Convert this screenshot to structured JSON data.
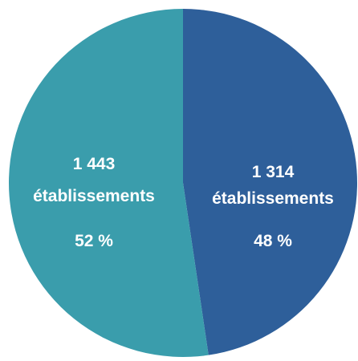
{
  "chart_data": {
    "type": "pie",
    "title": "",
    "legend": "none",
    "slices": [
      {
        "value": 1314,
        "percent": 48,
        "count_label": "1 314",
        "unit_label": "établissements",
        "percent_label": "48 %",
        "color": "#2E5F9A"
      },
      {
        "value": 1443,
        "percent": 52,
        "count_label": "1 443",
        "unit_label": "établissements",
        "percent_label": "52 %",
        "color": "#3A9DAC"
      }
    ]
  }
}
